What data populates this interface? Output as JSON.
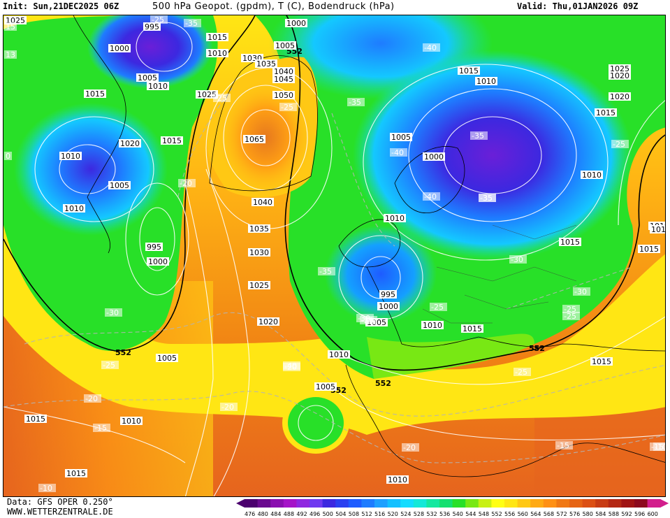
{
  "header": {
    "init": "Init: Sun,21DEC2025 06Z",
    "title": "500 hPa Geopot. (gpdm), T (C), Bodendruck (hPa)",
    "valid": "Valid: Thu,01JAN2026 09Z"
  },
  "footer": {
    "data_source": "Data: GFS OPER 0.250°",
    "website": "WWW.WETTERZENTRALE.DE"
  },
  "legend": {
    "values": [
      "476",
      "480",
      "484",
      "488",
      "492",
      "496",
      "500",
      "504",
      "508",
      "512",
      "516",
      "520",
      "524",
      "528",
      "532",
      "536",
      "540",
      "544",
      "548",
      "552",
      "556",
      "560",
      "564",
      "568",
      "572",
      "576",
      "580",
      "584",
      "588",
      "592",
      "596",
      "600"
    ],
    "colors": [
      "#4b006e",
      "#6a0a8f",
      "#8a0fb0",
      "#a514c8",
      "#8f28e0",
      "#6f3af0",
      "#3c28e0",
      "#2a40f0",
      "#1e5cff",
      "#1e7cff",
      "#1ea0ff",
      "#14c0ff",
      "#14dcff",
      "#14e8d8",
      "#14e8a0",
      "#14e070",
      "#28e028",
      "#78e814",
      "#c8f014",
      "#ffff14",
      "#ffe614",
      "#ffc814",
      "#ffaa14",
      "#ff9014",
      "#f07814",
      "#e66414",
      "#dc5014",
      "#c83c14",
      "#b42814",
      "#a01414",
      "#8c0a1e",
      "#d21e8c"
    ]
  },
  "map": {
    "contour_line_label": "552",
    "pressure_labels": [
      "995",
      "1000",
      "1005",
      "1010",
      "1015",
      "1015",
      "1020",
      "1025",
      "1030",
      "1035",
      "1040",
      "1045",
      "1050",
      "1065",
      "1040",
      "1035",
      "1030",
      "1025",
      "1020",
      "1015",
      "1010",
      "1005",
      "1000",
      "995",
      "1000",
      "1005",
      "1010",
      "1015",
      "1020",
      "1025",
      "1010",
      "1005",
      "1010",
      "1015",
      "1020",
      "1015",
      "1010",
      "1005",
      "1000",
      "995",
      "1000",
      "1005",
      "1010",
      "1015",
      "1010",
      "1015",
      "1020",
      "1025",
      "1010",
      "1015",
      "1010",
      "1005",
      "1010",
      "1015",
      "1015",
      "1015",
      "1010",
      "1010"
    ],
    "temp_labels": [
      "-25",
      "-35",
      "-25",
      "-25",
      "-35",
      "-40",
      "-40",
      "-40",
      "-35",
      "-35",
      "-25",
      "-20",
      "-25",
      "-35",
      "-30",
      "-30",
      "-25",
      "-25",
      "-30",
      "-25",
      "-20",
      "-20",
      "-20",
      "-15",
      "-15",
      "-20",
      "-15",
      "-10",
      "-30",
      "-25",
      "-20",
      "-40",
      "-35",
      "-10",
      "15",
      "13",
      "0"
    ],
    "colors": {
      "low_deep": "#6a1fd8",
      "low_core": "#2a2ae8",
      "blue_mid": "#1e7cff",
      "cyan": "#14c8ff",
      "teal": "#14e0a8",
      "green": "#28e028",
      "yellow": "#ffe614",
      "orange": "#ff9a14",
      "dark_orange": "#e6641e",
      "red_brown": "#c83c14"
    }
  }
}
